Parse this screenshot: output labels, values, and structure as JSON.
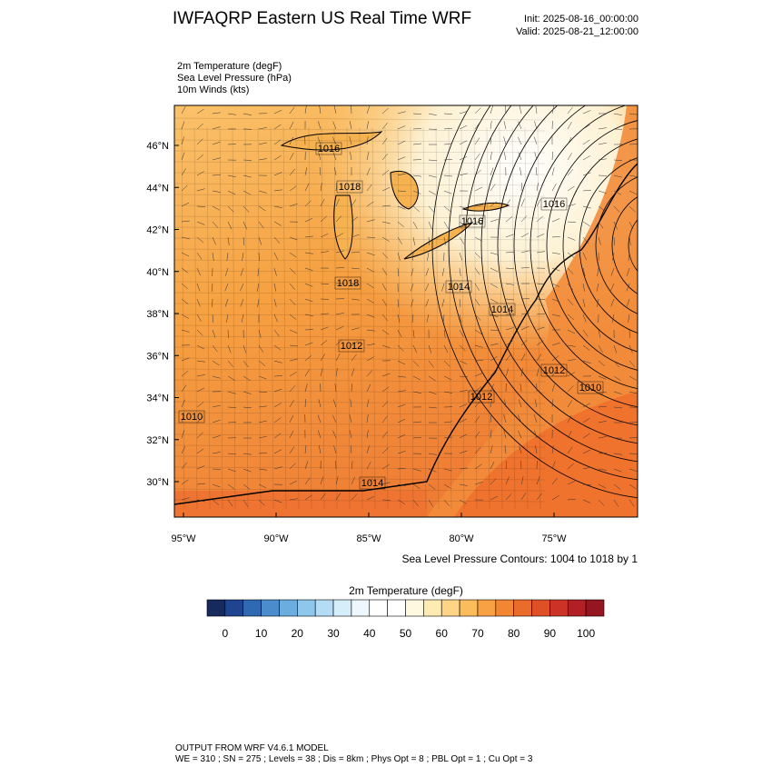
{
  "header": {
    "title": "IWFAQRP Eastern US Real Time WRF",
    "init": "Init: 2025-08-16_00:00:00",
    "valid": "Valid: 2025-08-21_12:00:00"
  },
  "fields": [
    "2m Temperature   (degF)",
    "Sea Level Pressure   (hPa)",
    "10m Winds   (kts)"
  ],
  "map": {
    "lat_labels": [
      "46°N",
      "44°N",
      "42°N",
      "40°N",
      "38°N",
      "36°N",
      "34°N",
      "32°N",
      "30°N"
    ],
    "lon_labels": [
      "95°W",
      "90°W",
      "85°W",
      "80°W",
      "75°W"
    ],
    "contour_labels": [
      "1016",
      "1018",
      "1016",
      "1016",
      "1018",
      "1014",
      "1014",
      "1012",
      "1012",
      "1010",
      "1012",
      "1010",
      "1014"
    ],
    "contour_note": "Sea Level Pressure Contours: 1004 to 1018 by 1"
  },
  "colorbar": {
    "title": "2m Temperature  (degF)",
    "labels": [
      "0",
      "10",
      "20",
      "30",
      "40",
      "50",
      "60",
      "70",
      "80",
      "90",
      "100"
    ],
    "colors": [
      "#172a5e",
      "#1f4591",
      "#2f69b3",
      "#4a8ccc",
      "#6aaddf",
      "#8ec6ec",
      "#b4dcf5",
      "#d6edfa",
      "#eef7fc",
      "#ffffff",
      "#ffffff",
      "#fff8e1",
      "#fdebb2",
      "#fdd585",
      "#fbbc5b",
      "#f8a142",
      "#f28633",
      "#ea6b2a",
      "#df5027",
      "#cc3326",
      "#b21f24",
      "#931620"
    ]
  },
  "footer": [
    "OUTPUT FROM WRF V4.6.1 MODEL",
    "WE = 310 ; SN = 275 ; Levels = 38 ; Dis = 8km ; Phys Opt = 8 ; PBL Opt = 1 ; Cu Opt = 3"
  ]
}
